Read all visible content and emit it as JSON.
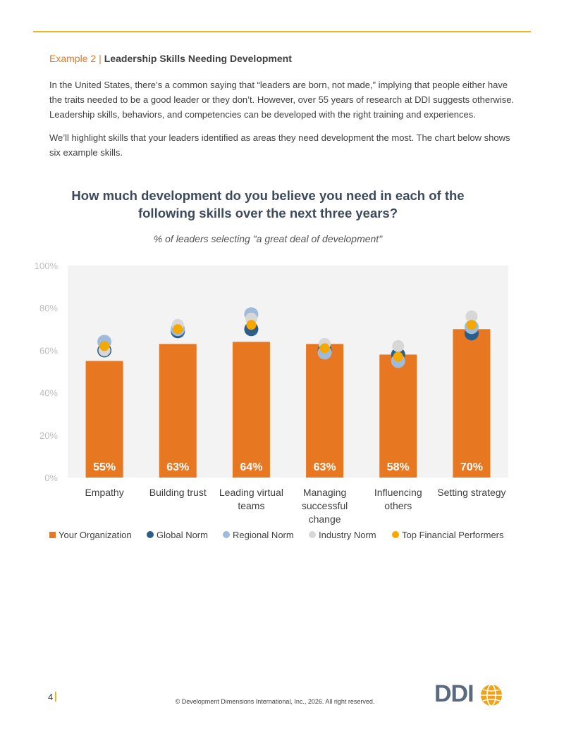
{
  "heading": {
    "example": "Example 2",
    "separator": "|",
    "title": "Leadership Skills Needing Development"
  },
  "paragraphs": [
    "In the United States, there’s a common saying that “leaders are born, not made,” implying that people either have the traits needed to be a good leader or they don’t. However, over 55 years of research at DDI suggests otherwise. Leadership skills, behaviors, and competencies can be developed with the right training and experiences.",
    "We’ll highlight skills that your leaders identified as areas they need development the most. The chart below shows six example skills."
  ],
  "chart_data": {
    "type": "bar",
    "title": "How much development do you believe you need in each of the following skills over the next three years?",
    "subtitle": "% of leaders selecting \"a great deal of development\"",
    "categories": [
      [
        "Empathy"
      ],
      [
        "Building trust"
      ],
      [
        "Leading virtual",
        "teams"
      ],
      [
        "Managing",
        "successful",
        "change"
      ],
      [
        "Influencing",
        "others"
      ],
      [
        "Setting strategy"
      ]
    ],
    "y_ticks": [
      "0%",
      "20%",
      "40%",
      "60%",
      "80%",
      "100%"
    ],
    "ylim": [
      0,
      100
    ],
    "bars": {
      "name": "Your Organization",
      "values": [
        55,
        63,
        64,
        63,
        58,
        70
      ],
      "labels": [
        "55%",
        "63%",
        "64%",
        "63%",
        "58%",
        "70%"
      ]
    },
    "markers": [
      {
        "name": "Global Norm",
        "values": [
          60,
          69,
          70,
          60,
          58,
          68
        ]
      },
      {
        "name": "Regional Norm",
        "values": [
          64,
          70,
          77,
          59,
          55,
          71
        ]
      },
      {
        "name": "Industry Norm",
        "values": [
          60,
          72,
          75,
          63,
          62,
          76
        ]
      },
      {
        "name": "Top Financial Performers",
        "values": [
          62,
          70,
          72,
          61,
          57,
          72
        ]
      }
    ],
    "legend_position": "bottom",
    "grid": false
  },
  "colors": {
    "bar": "#e87722",
    "global_norm": "#2b5f8a",
    "regional_norm": "#9fbbdb",
    "industry_norm": "#d7d7d7",
    "top_financial": "#f4a800",
    "plot_bg": "#f3f3f3",
    "accent_rule": "#f0b323"
  },
  "footer": {
    "page_number": "4",
    "copyright": "© Development Dimensions International, Inc., 2026.  All right reserved.",
    "logo_text": "DDI"
  }
}
